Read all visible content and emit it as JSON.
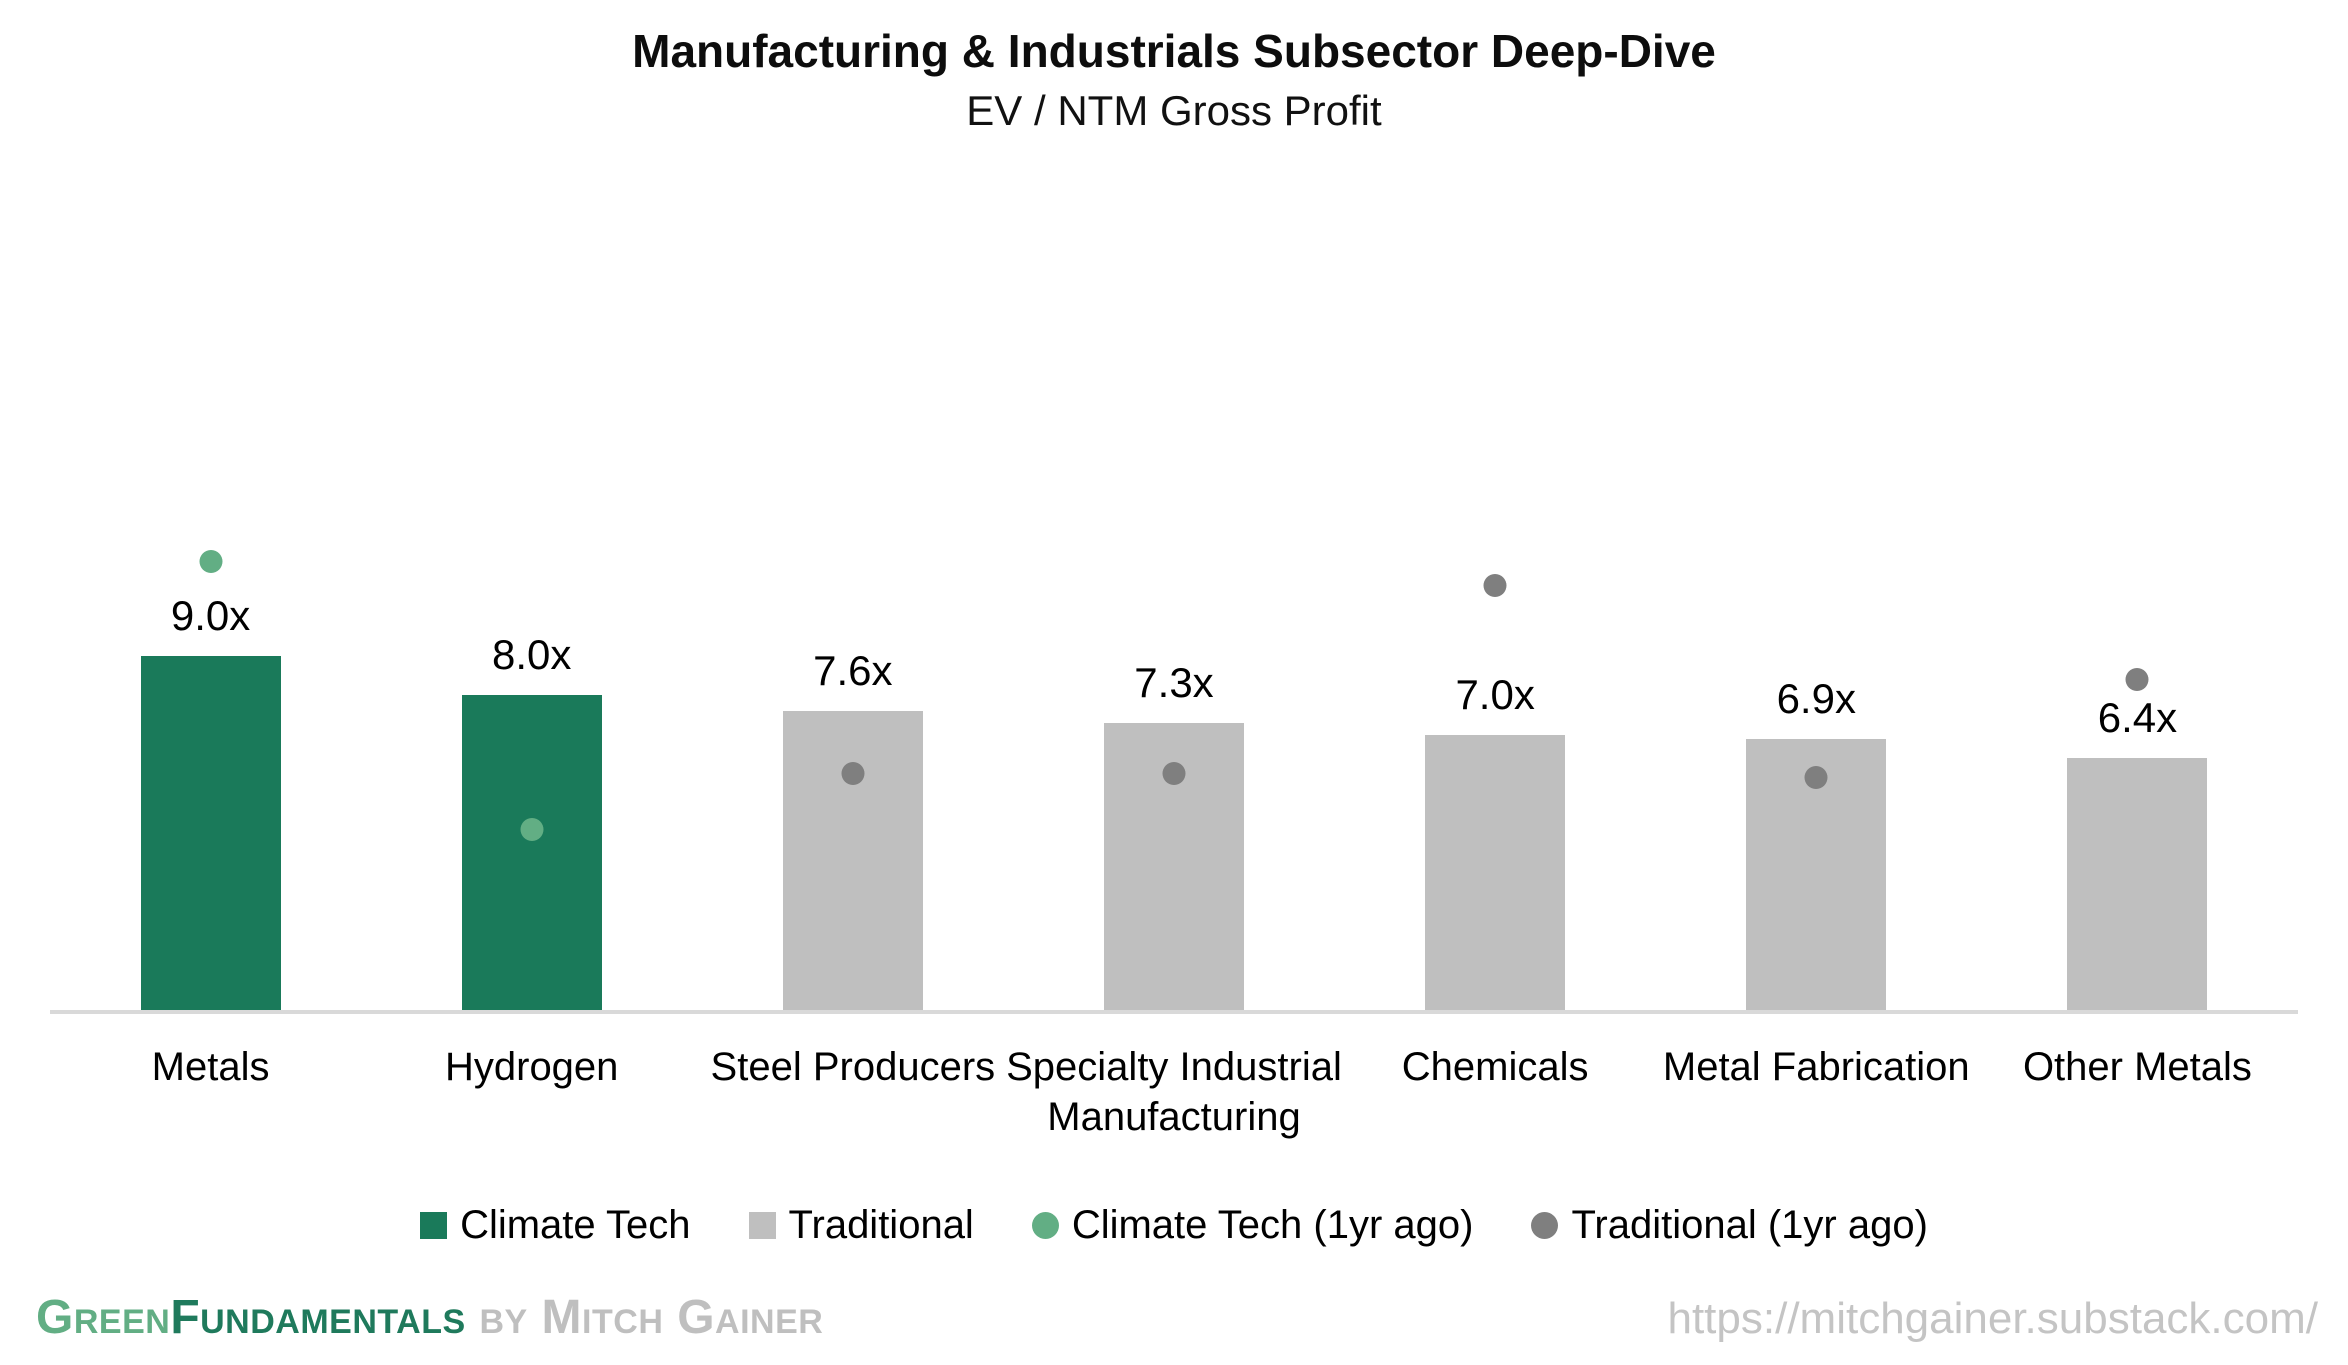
{
  "header": {
    "title": "Manufacturing & Industrials Subsector Deep-Dive",
    "subtitle": "EV / NTM Gross Profit"
  },
  "chart_data": {
    "type": "bar",
    "title": "Manufacturing & Industrials Subsector Deep-Dive",
    "subtitle": "EV / NTM Gross Profit",
    "unit_suffix": "x",
    "categories": [
      "Metals",
      "Hydrogen",
      "Steel Producers",
      "Specialty Industrial Manufacturing",
      "Chemicals",
      "Metal Fabrication",
      "Other Metals"
    ],
    "value_labels": [
      "9.0x",
      "8.0x",
      "7.6x",
      "7.3x",
      "7.0x",
      "6.9x",
      "6.4x"
    ],
    "series": [
      {
        "name": "Climate Tech",
        "type": "bar",
        "color": "#1A7A5A",
        "values": [
          9.0,
          8.0,
          null,
          null,
          null,
          null,
          null
        ]
      },
      {
        "name": "Traditional",
        "type": "bar",
        "color": "#BFBFBF",
        "values": [
          null,
          null,
          7.6,
          7.3,
          7.0,
          6.9,
          6.4
        ]
      },
      {
        "name": "Climate Tech (1yr ago)",
        "type": "dot",
        "color": "#62AE84",
        "values": [
          11.4,
          4.6,
          null,
          null,
          null,
          null,
          null
        ]
      },
      {
        "name": "Traditional (1yr ago)",
        "type": "dot",
        "color": "#7F7F7F",
        "values": [
          null,
          null,
          6.0,
          6.0,
          10.8,
          5.9,
          8.4
        ]
      }
    ],
    "ylim": [
      0,
      12
    ],
    "grid": false,
    "y_axis_visible": false,
    "axis_line_color": "#D9D9D9",
    "legend_position": "bottom"
  },
  "legend": {
    "items": [
      {
        "label": "Climate Tech",
        "marker": "square",
        "color": "#1A7A5A"
      },
      {
        "label": "Traditional",
        "marker": "square",
        "color": "#BFBFBF"
      },
      {
        "label": "Climate Tech (1yr ago)",
        "marker": "circle",
        "color": "#62AE84"
      },
      {
        "label": "Traditional (1yr ago)",
        "marker": "circle",
        "color": "#7F7F7F"
      }
    ]
  },
  "footer": {
    "brand_part1": "Green",
    "brand_part2": "Fundamentals",
    "brand_part3": " by Mitch Gainer",
    "brand_color_light_green": "#62AE84",
    "brand_color_dark_green": "#1F7A5C",
    "brand_color_gray": "#BFBFBF",
    "url": "https://mitchgainer.substack.com/",
    "url_color": "#C4C4C4"
  }
}
